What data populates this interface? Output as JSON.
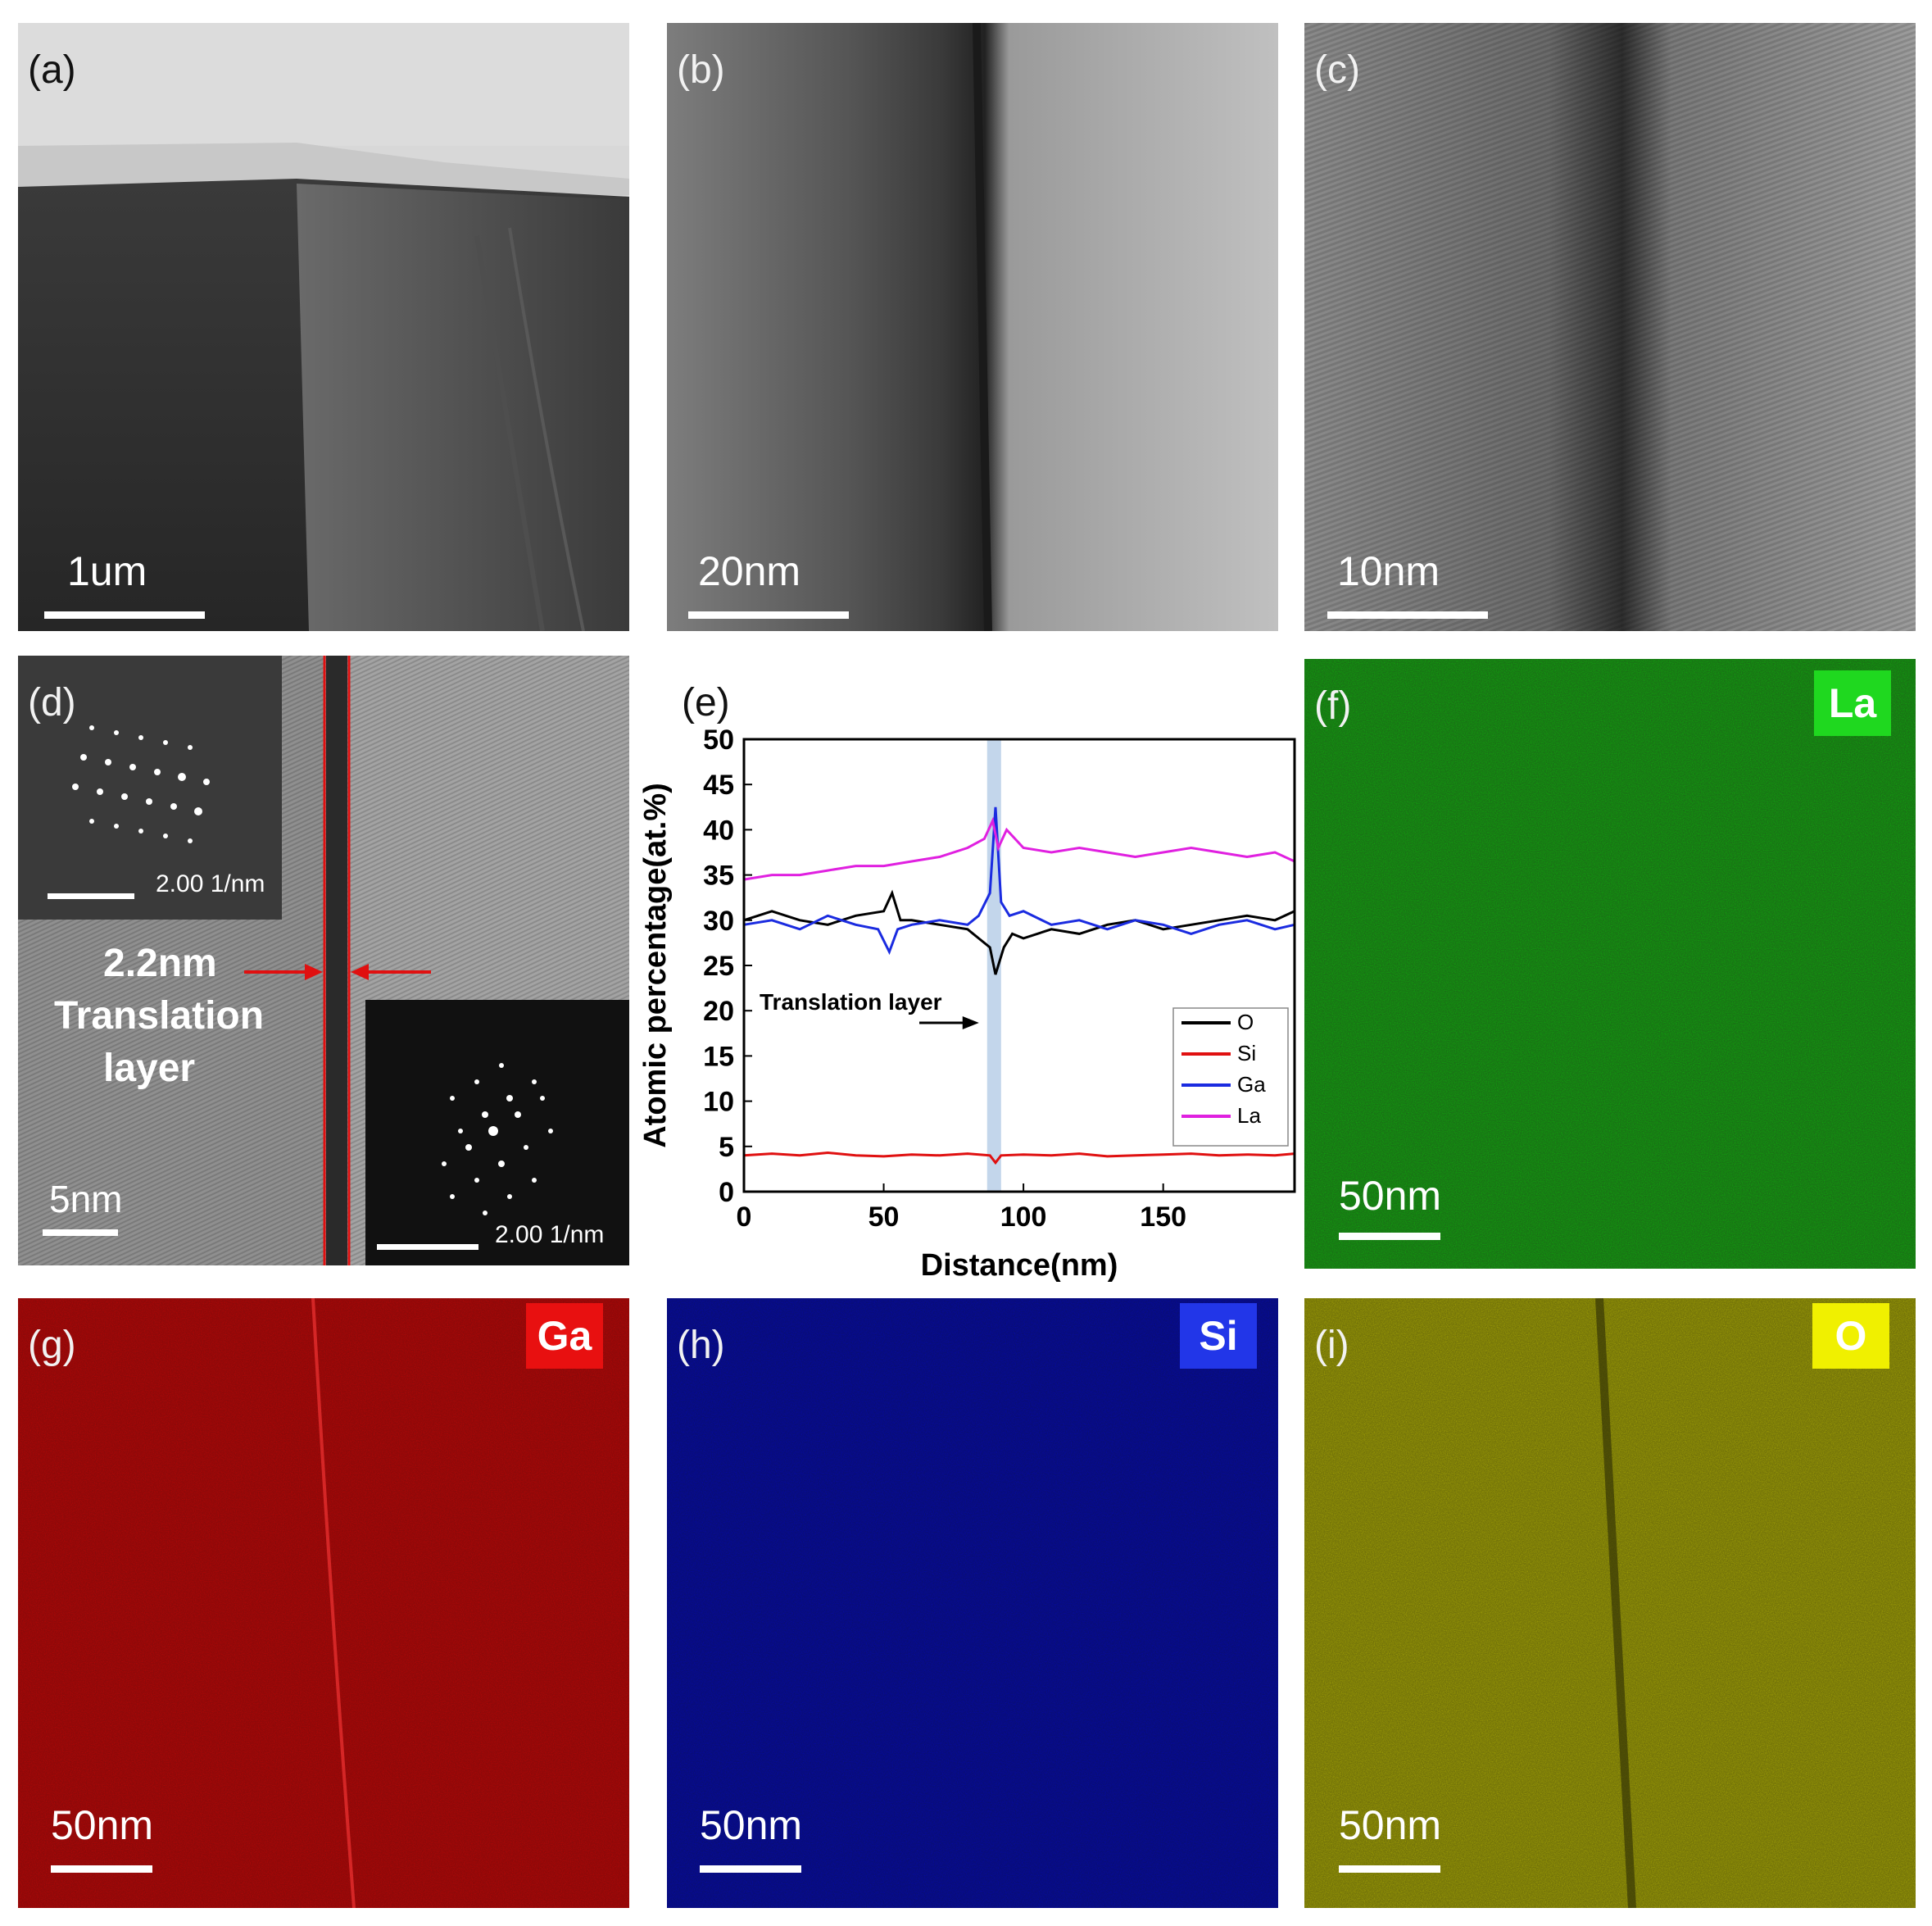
{
  "panels": {
    "a": {
      "label": "(a)",
      "scale": "1um"
    },
    "b": {
      "label": "(b)",
      "scale": "20nm"
    },
    "c": {
      "label": "(c)",
      "scale": "10nm"
    },
    "d": {
      "label": "(d)",
      "scale": "5nm",
      "inset_top_scale": "2.00 1/nm",
      "inset_bottom_scale": "2.00 1/nm",
      "width_label": "2.2nm",
      "layer_label_1": "Translation",
      "layer_label_2": "layer"
    },
    "e": {
      "label": "(e)"
    },
    "f": {
      "label": "(f)",
      "scale": "50nm",
      "element": "La",
      "color": "#1fd81f"
    },
    "g": {
      "label": "(g)",
      "scale": "50nm",
      "element": "Ga",
      "color": "#e81010"
    },
    "h": {
      "label": "(h)",
      "scale": "50nm",
      "element": "Si",
      "color": "#2236e8"
    },
    "i": {
      "label": "(i)",
      "scale": "50nm",
      "element": "O",
      "color": "#f0f000"
    }
  },
  "chart_data": {
    "type": "line",
    "xlabel": "Distance(nm)",
    "ylabel": "Atomic percentage(at.%)",
    "xlim": [
      0,
      197
    ],
    "ylim": [
      0,
      50
    ],
    "xticks": [
      0,
      50,
      100,
      150
    ],
    "yticks": [
      0,
      5,
      10,
      15,
      20,
      25,
      30,
      35,
      40,
      45,
      50
    ],
    "annotation": "Translation layer",
    "highlight_band": [
      87,
      92
    ],
    "legend_position": "bottom-right",
    "series": [
      {
        "name": "O",
        "color": "#000000",
        "x": [
          0,
          10,
          20,
          30,
          40,
          50,
          53,
          56,
          60,
          70,
          80,
          84,
          88,
          90,
          93,
          96,
          100,
          110,
          120,
          130,
          140,
          150,
          160,
          170,
          180,
          190,
          197
        ],
        "y": [
          30,
          31,
          30,
          29.5,
          30.5,
          31,
          33,
          30,
          30,
          29.5,
          29,
          28,
          27,
          24,
          27,
          28.5,
          28,
          29,
          28.5,
          29.5,
          30,
          29,
          29.5,
          30,
          30.5,
          30,
          31
        ]
      },
      {
        "name": "Si",
        "color": "#e01010",
        "x": [
          0,
          10,
          20,
          30,
          40,
          50,
          60,
          70,
          80,
          88,
          90,
          92,
          100,
          110,
          120,
          130,
          140,
          150,
          160,
          170,
          180,
          190,
          197
        ],
        "y": [
          4,
          4.2,
          4,
          4.3,
          4,
          3.9,
          4.1,
          4,
          4.2,
          4,
          3.2,
          4,
          4.1,
          4,
          4.2,
          3.9,
          4,
          4.1,
          4.2,
          4,
          4.1,
          4,
          4.2
        ]
      },
      {
        "name": "Ga",
        "color": "#1a2be0",
        "x": [
          0,
          10,
          20,
          30,
          40,
          48,
          52,
          55,
          60,
          70,
          80,
          84,
          88,
          90,
          92,
          95,
          100,
          110,
          120,
          130,
          140,
          150,
          160,
          170,
          180,
          190,
          197
        ],
        "y": [
          29.5,
          30,
          29,
          30.5,
          29.5,
          29,
          26.5,
          29,
          29.5,
          30,
          29.5,
          30.5,
          33,
          42.5,
          32,
          30.5,
          31,
          29.5,
          30,
          29,
          30,
          29.5,
          28.5,
          29.5,
          30,
          29,
          29.5
        ]
      },
      {
        "name": "La",
        "color": "#e020e0",
        "x": [
          0,
          10,
          20,
          30,
          40,
          50,
          60,
          70,
          80,
          86,
          89,
          91,
          94,
          100,
          110,
          120,
          130,
          140,
          150,
          160,
          170,
          180,
          190,
          197
        ],
        "y": [
          34.5,
          35,
          35,
          35.5,
          36,
          36,
          36.5,
          37,
          38,
          39,
          41,
          38,
          40,
          38,
          37.5,
          38,
          37.5,
          37,
          37.5,
          38,
          37.5,
          37,
          37.5,
          36.5
        ]
      }
    ]
  }
}
